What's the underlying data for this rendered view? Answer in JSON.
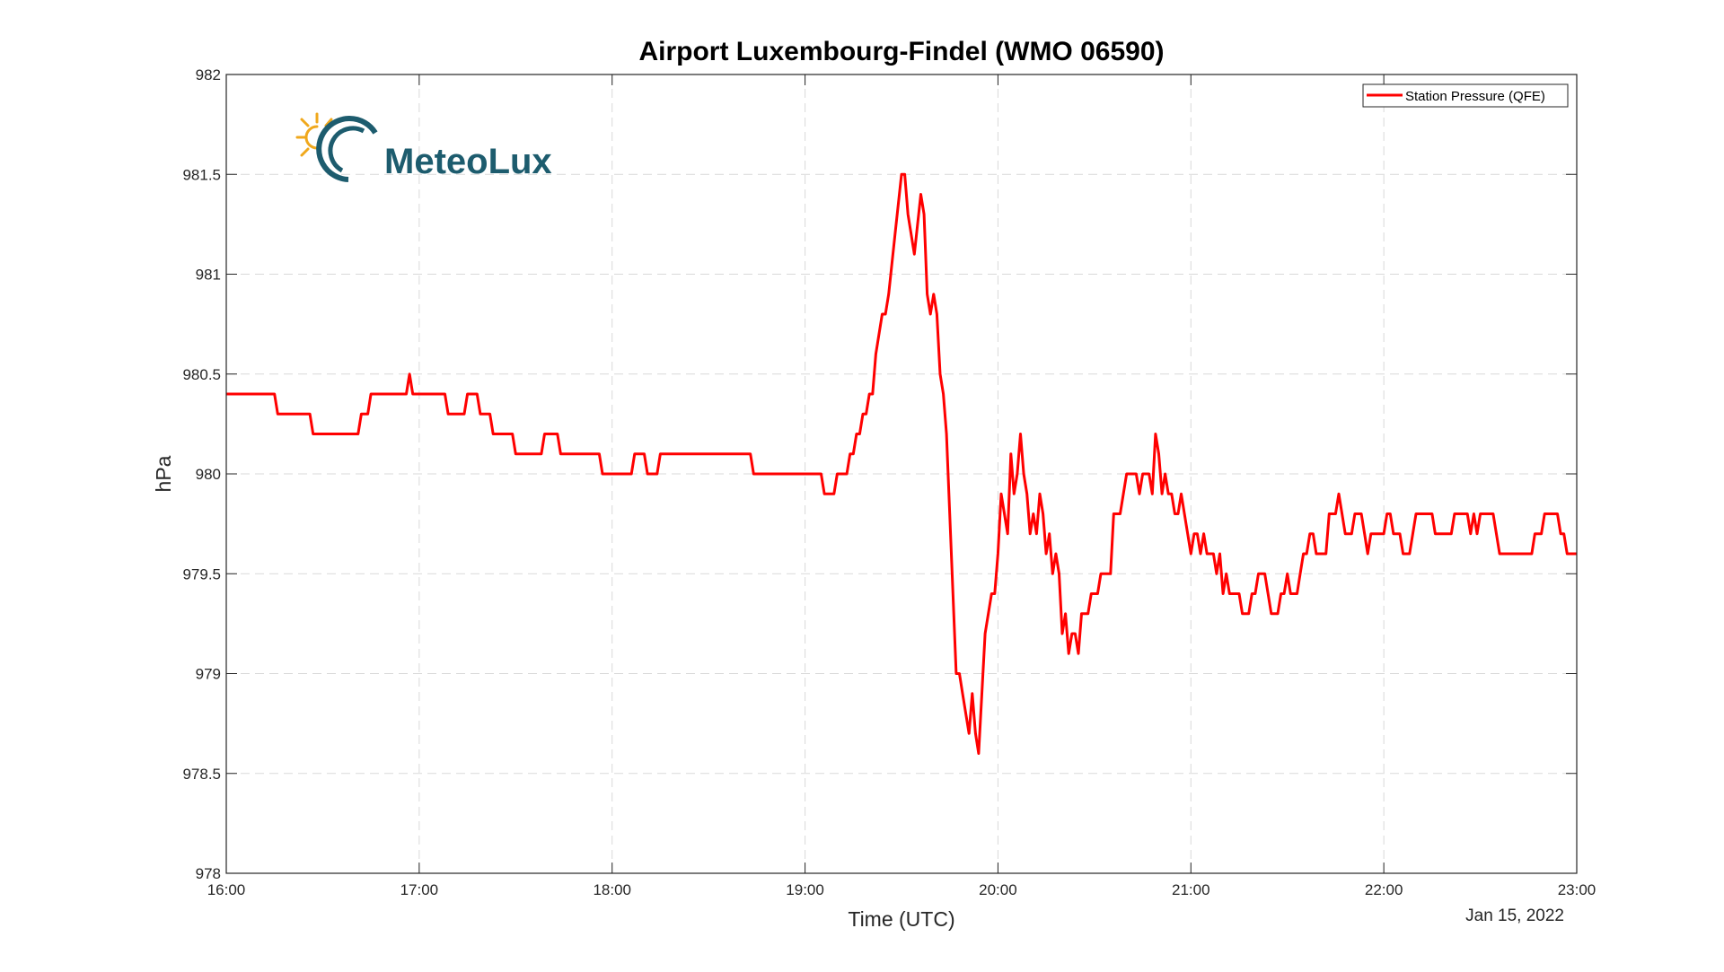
{
  "chart_data": {
    "type": "line",
    "title": "Airport Luxembourg-Findel (WMO 06590)",
    "xlabel": "Time (UTC)",
    "ylabel": "hPa",
    "date_label": "Jan 15, 2022",
    "xlim": [
      "16:00",
      "23:00"
    ],
    "ylim": [
      978,
      982
    ],
    "x_ticks": [
      "16:00",
      "17:00",
      "18:00",
      "19:00",
      "20:00",
      "21:00",
      "22:00",
      "23:00"
    ],
    "y_ticks": [
      "978",
      "978.5",
      "979",
      "979.5",
      "980",
      "980.5",
      "981",
      "981.5",
      "982"
    ],
    "grid": true,
    "legend_position": "top-right",
    "logo": {
      "text": "MeteoLux",
      "colors": {
        "text": "#1d5c6e",
        "sun": "#f0a81c",
        "ring": "#1d5c6e"
      }
    },
    "series": [
      {
        "name": "Station Pressure (QFE)",
        "color": "#ff0000",
        "points": [
          [
            "16:00",
            980.4
          ],
          [
            "16:15",
            980.4
          ],
          [
            "16:16",
            980.3
          ],
          [
            "16:26",
            980.3
          ],
          [
            "16:27",
            980.2
          ],
          [
            "16:41",
            980.2
          ],
          [
            "16:42",
            980.3
          ],
          [
            "16:44",
            980.3
          ],
          [
            "16:45",
            980.4
          ],
          [
            "16:56",
            980.4
          ],
          [
            "16:57",
            980.5
          ],
          [
            "16:58",
            980.4
          ],
          [
            "17:08",
            980.4
          ],
          [
            "17:09",
            980.3
          ],
          [
            "17:14",
            980.3
          ],
          [
            "17:15",
            980.4
          ],
          [
            "17:18",
            980.4
          ],
          [
            "17:19",
            980.3
          ],
          [
            "17:22",
            980.3
          ],
          [
            "17:23",
            980.2
          ],
          [
            "17:29",
            980.2
          ],
          [
            "17:30",
            980.1
          ],
          [
            "17:38",
            980.1
          ],
          [
            "17:39",
            980.2
          ],
          [
            "17:43",
            980.2
          ],
          [
            "17:44",
            980.1
          ],
          [
            "17:56",
            980.1
          ],
          [
            "17:57",
            980.0
          ],
          [
            "18:06",
            980.0
          ],
          [
            "18:07",
            980.1
          ],
          [
            "18:10",
            980.1
          ],
          [
            "18:11",
            980.0
          ],
          [
            "18:14",
            980.0
          ],
          [
            "18:15",
            980.1
          ],
          [
            "18:43",
            980.1
          ],
          [
            "18:44",
            980.0
          ],
          [
            "19:05",
            980.0
          ],
          [
            "19:06",
            979.9
          ],
          [
            "19:09",
            979.9
          ],
          [
            "19:10",
            980.0
          ],
          [
            "19:13",
            980.0
          ],
          [
            "19:14",
            980.1
          ],
          [
            "19:15",
            980.1
          ],
          [
            "19:16",
            980.2
          ],
          [
            "19:17",
            980.2
          ],
          [
            "19:18",
            980.3
          ],
          [
            "19:19",
            980.3
          ],
          [
            "19:20",
            980.4
          ],
          [
            "19:21",
            980.4
          ],
          [
            "19:22",
            980.6
          ],
          [
            "19:24",
            980.8
          ],
          [
            "19:25",
            980.8
          ],
          [
            "19:26",
            980.9
          ],
          [
            "19:28",
            981.2
          ],
          [
            "19:30",
            981.5
          ],
          [
            "19:31",
            981.5
          ],
          [
            "19:32",
            981.3
          ],
          [
            "19:34",
            981.1
          ],
          [
            "19:36",
            981.4
          ],
          [
            "19:37",
            981.3
          ],
          [
            "19:38",
            980.9
          ],
          [
            "19:39",
            980.8
          ],
          [
            "19:40",
            980.9
          ],
          [
            "19:41",
            980.8
          ],
          [
            "19:42",
            980.5
          ],
          [
            "19:43",
            980.4
          ],
          [
            "19:44",
            980.2
          ],
          [
            "19:45",
            979.8
          ],
          [
            "19:46",
            979.4
          ],
          [
            "19:47",
            979.0
          ],
          [
            "19:48",
            979.0
          ],
          [
            "19:49",
            978.9
          ],
          [
            "19:51",
            978.7
          ],
          [
            "19:52",
            978.9
          ],
          [
            "19:53",
            978.7
          ],
          [
            "19:54",
            978.6
          ],
          [
            "19:55",
            978.9
          ],
          [
            "19:56",
            979.2
          ],
          [
            "19:58",
            979.4
          ],
          [
            "19:59",
            979.4
          ],
          [
            "20:00",
            979.6
          ],
          [
            "20:01",
            979.9
          ],
          [
            "20:03",
            979.7
          ],
          [
            "20:04",
            980.1
          ],
          [
            "20:05",
            979.9
          ],
          [
            "20:06",
            980.0
          ],
          [
            "20:07",
            980.2
          ],
          [
            "20:08",
            980.0
          ],
          [
            "20:09",
            979.9
          ],
          [
            "20:10",
            979.7
          ],
          [
            "20:11",
            979.8
          ],
          [
            "20:12",
            979.7
          ],
          [
            "20:13",
            979.9
          ],
          [
            "20:14",
            979.8
          ],
          [
            "20:15",
            979.6
          ],
          [
            "20:16",
            979.7
          ],
          [
            "20:17",
            979.5
          ],
          [
            "20:18",
            979.6
          ],
          [
            "20:19",
            979.5
          ],
          [
            "20:20",
            979.2
          ],
          [
            "20:21",
            979.3
          ],
          [
            "20:22",
            979.1
          ],
          [
            "20:23",
            979.2
          ],
          [
            "20:24",
            979.2
          ],
          [
            "20:25",
            979.1
          ],
          [
            "20:26",
            979.3
          ],
          [
            "20:28",
            979.3
          ],
          [
            "20:29",
            979.4
          ],
          [
            "20:31",
            979.4
          ],
          [
            "20:32",
            979.5
          ],
          [
            "20:35",
            979.5
          ],
          [
            "20:36",
            979.8
          ],
          [
            "20:38",
            979.8
          ],
          [
            "20:39",
            979.9
          ],
          [
            "20:40",
            980.0
          ],
          [
            "20:43",
            980.0
          ],
          [
            "20:44",
            979.9
          ],
          [
            "20:45",
            980.0
          ],
          [
            "20:47",
            980.0
          ],
          [
            "20:48",
            979.9
          ],
          [
            "20:49",
            980.2
          ],
          [
            "20:50",
            980.1
          ],
          [
            "20:51",
            979.9
          ],
          [
            "20:52",
            980.0
          ],
          [
            "20:53",
            979.9
          ],
          [
            "20:54",
            979.9
          ],
          [
            "20:55",
            979.8
          ],
          [
            "20:56",
            979.8
          ],
          [
            "20:57",
            979.9
          ],
          [
            "20:58",
            979.8
          ],
          [
            "20:59",
            979.7
          ],
          [
            "21:00",
            979.6
          ],
          [
            "21:01",
            979.7
          ],
          [
            "21:02",
            979.7
          ],
          [
            "21:03",
            979.6
          ],
          [
            "21:04",
            979.7
          ],
          [
            "21:05",
            979.6
          ],
          [
            "21:07",
            979.6
          ],
          [
            "21:08",
            979.5
          ],
          [
            "21:09",
            979.6
          ],
          [
            "21:10",
            979.4
          ],
          [
            "21:11",
            979.5
          ],
          [
            "21:12",
            979.4
          ],
          [
            "21:15",
            979.4
          ],
          [
            "21:16",
            979.3
          ],
          [
            "21:18",
            979.3
          ],
          [
            "21:19",
            979.4
          ],
          [
            "21:20",
            979.4
          ],
          [
            "21:21",
            979.5
          ],
          [
            "21:23",
            979.5
          ],
          [
            "21:24",
            979.4
          ],
          [
            "21:25",
            979.3
          ],
          [
            "21:27",
            979.3
          ],
          [
            "21:28",
            979.4
          ],
          [
            "21:29",
            979.4
          ],
          [
            "21:30",
            979.5
          ],
          [
            "21:31",
            979.4
          ],
          [
            "21:33",
            979.4
          ],
          [
            "21:34",
            979.5
          ],
          [
            "21:35",
            979.6
          ],
          [
            "21:36",
            979.6
          ],
          [
            "21:37",
            979.7
          ],
          [
            "21:38",
            979.7
          ],
          [
            "21:39",
            979.6
          ],
          [
            "21:42",
            979.6
          ],
          [
            "21:43",
            979.8
          ],
          [
            "21:45",
            979.8
          ],
          [
            "21:46",
            979.9
          ],
          [
            "21:47",
            979.8
          ],
          [
            "21:48",
            979.7
          ],
          [
            "21:50",
            979.7
          ],
          [
            "21:51",
            979.8
          ],
          [
            "21:53",
            979.8
          ],
          [
            "21:54",
            979.7
          ],
          [
            "21:55",
            979.6
          ],
          [
            "21:56",
            979.7
          ],
          [
            "22:00",
            979.7
          ],
          [
            "22:01",
            979.8
          ],
          [
            "22:02",
            979.8
          ],
          [
            "22:03",
            979.7
          ],
          [
            "22:05",
            979.7
          ],
          [
            "22:06",
            979.6
          ],
          [
            "22:08",
            979.6
          ],
          [
            "22:09",
            979.7
          ],
          [
            "22:10",
            979.8
          ],
          [
            "22:15",
            979.8
          ],
          [
            "22:16",
            979.7
          ],
          [
            "22:21",
            979.7
          ],
          [
            "22:22",
            979.8
          ],
          [
            "22:26",
            979.8
          ],
          [
            "22:27",
            979.7
          ],
          [
            "22:28",
            979.8
          ],
          [
            "22:29",
            979.7
          ],
          [
            "22:30",
            979.8
          ],
          [
            "22:34",
            979.8
          ],
          [
            "22:35",
            979.7
          ],
          [
            "22:36",
            979.6
          ],
          [
            "22:46",
            979.6
          ],
          [
            "22:47",
            979.7
          ],
          [
            "22:49",
            979.7
          ],
          [
            "22:50",
            979.8
          ],
          [
            "22:54",
            979.8
          ],
          [
            "22:55",
            979.7
          ],
          [
            "22:56",
            979.7
          ],
          [
            "22:57",
            979.6
          ],
          [
            "23:00",
            979.6
          ]
        ]
      }
    ]
  }
}
